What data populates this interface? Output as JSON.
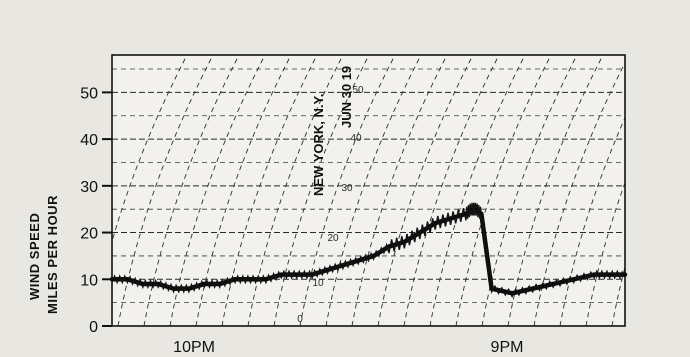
{
  "chart_data": {
    "type": "line",
    "title": "",
    "ylabel_line1": "WIND SPEED",
    "ylabel_line2": "MILES PER HOUR",
    "xlabel": "",
    "yticks": [
      0,
      10,
      20,
      30,
      40,
      50
    ],
    "ylim": [
      0,
      58
    ],
    "xticks": [
      {
        "label": "10PM",
        "x": 0.16
      },
      {
        "label": "9PM",
        "x": 0.77
      }
    ],
    "xlim": [
      0,
      1
    ],
    "grid": true,
    "stamp_location": "NEW YORK, N.Y.",
    "stamp_date": "JUN 30 19",
    "chart_scale_labels": [
      "0",
      "10",
      "20",
      "30",
      "40",
      "50"
    ],
    "series": [
      {
        "x": [
          0.0,
          0.03,
          0.06,
          0.09,
          0.12,
          0.15,
          0.18,
          0.21,
          0.24,
          0.27,
          0.3,
          0.33,
          0.36,
          0.39,
          0.42,
          0.45,
          0.48,
          0.51,
          0.54,
          0.57,
          0.6,
          0.63,
          0.66,
          0.69,
          0.7,
          0.71,
          0.72,
          0.74,
          0.78,
          0.82,
          0.86,
          0.9,
          0.94,
          0.97,
          1.0
        ],
        "values": [
          10,
          10,
          9,
          9,
          8,
          8,
          9,
          9,
          10,
          10,
          10,
          11,
          11,
          11,
          12,
          13,
          14,
          15,
          17,
          18,
          20,
          22,
          23,
          24,
          25,
          25,
          24,
          8,
          7,
          8,
          9,
          10,
          11,
          11,
          11
        ]
      }
    ]
  }
}
